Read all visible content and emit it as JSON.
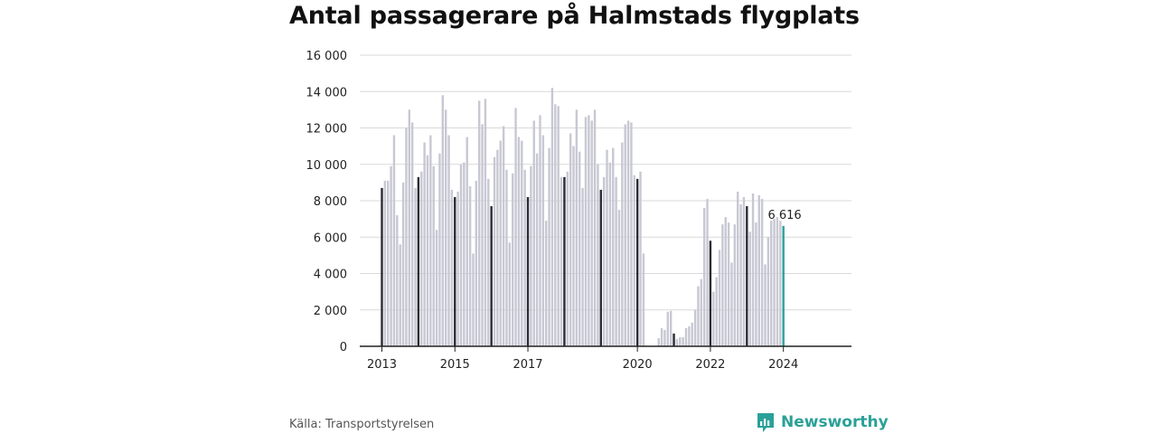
{
  "title": "Antal passagerare på Halmstads flygplats",
  "source": "Källa: Transportstyrelsen",
  "brand": {
    "name": "Newsworthy",
    "icon": "newsworthy-logo-icon"
  },
  "colors": {
    "regular": "#c8c8d4",
    "january": "#2b2b33",
    "latest": "#2aa198",
    "grid": "#d9d9d9",
    "axis": "#222222"
  },
  "chart_data": {
    "type": "bar",
    "title": "Antal passagerare på Halmstads flygplats",
    "xlabel": "",
    "ylabel": "",
    "ylim": [
      0,
      16000
    ],
    "y_ticks": [
      "0",
      "2 000",
      "4 000",
      "6 000",
      "8 000",
      "10 000",
      "12 000",
      "14 000",
      "16 000"
    ],
    "x_ticks": [
      "2013",
      "2015",
      "2017",
      "2020",
      "2022",
      "2024"
    ],
    "x_range": [
      "2013-01",
      "2024-01"
    ],
    "grid": true,
    "highlight": "January of each year shown in dark; latest month highlighted",
    "latest_label": "6 616",
    "series": [
      {
        "year": 2013,
        "values": [
          8700,
          9100,
          9100,
          9900,
          11600,
          7200,
          5600,
          9000,
          12000,
          13000,
          12300,
          8700
        ]
      },
      {
        "year": 2014,
        "values": [
          9300,
          9600,
          11200,
          10500,
          11600,
          9900,
          6400,
          10600,
          13800,
          13000,
          11600,
          8600
        ]
      },
      {
        "year": 2015,
        "values": [
          8200,
          8500,
          10000,
          10100,
          11500,
          8800,
          5100,
          9100,
          13500,
          12200,
          13600,
          9200
        ]
      },
      {
        "year": 2016,
        "values": [
          7700,
          10400,
          10800,
          11300,
          12100,
          9700,
          5700,
          9500,
          13100,
          11500,
          11300,
          9700
        ]
      },
      {
        "year": 2017,
        "values": [
          8200,
          9900,
          12400,
          10600,
          12700,
          11600,
          6900,
          10900,
          14200,
          13300,
          13200,
          9300
        ]
      },
      {
        "year": 2018,
        "values": [
          9300,
          9600,
          11700,
          11000,
          13000,
          10700,
          8700,
          12600,
          12700,
          12400,
          13000,
          10000
        ]
      },
      {
        "year": 2019,
        "values": [
          8600,
          9300,
          10800,
          10100,
          10900,
          9300,
          7500,
          11200,
          12200,
          12400,
          12300,
          9400
        ]
      },
      {
        "year": 2020,
        "values": [
          9200,
          9600,
          5100,
          0,
          0,
          0,
          0,
          450,
          1000,
          900,
          1900,
          1950
        ]
      },
      {
        "year": 2021,
        "values": [
          700,
          400,
          500,
          500,
          1000,
          1100,
          1300,
          2000,
          3300,
          3700,
          7600,
          8100
        ]
      },
      {
        "year": 2022,
        "values": [
          5800,
          3000,
          3800,
          5300,
          6700,
          7100,
          6800,
          4600,
          6700,
          8500,
          7800,
          8200
        ]
      },
      {
        "year": 2023,
        "values": [
          7700,
          6300,
          8400,
          6800,
          8300,
          8100,
          4500,
          6000,
          6900,
          7000,
          7100,
          6900
        ]
      },
      {
        "year": 2024,
        "values": [
          6616
        ]
      }
    ]
  }
}
